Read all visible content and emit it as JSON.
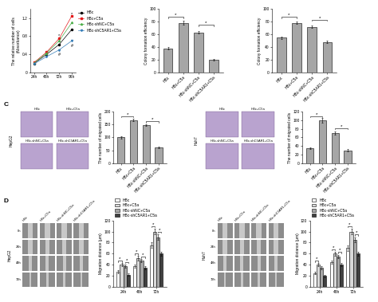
{
  "chart_data": [
    {
      "type": "line",
      "y_label": "The relative number of cells (Absorbance)",
      "categories": [
        "24h",
        "48h",
        "72h",
        "96h"
      ],
      "ylim": [
        0,
        1.4
      ],
      "yticks": [
        0,
        0.4,
        0.8,
        1.2
      ],
      "legend": "upper left",
      "series": [
        {
          "name": "HBc",
          "color": "#000000",
          "marker": "circle",
          "values": [
            0.2,
            0.4,
            0.62,
            0.95
          ]
        },
        {
          "name": "HBc+C5a",
          "color": "#e41a1c",
          "marker": "square",
          "values": [
            0.22,
            0.45,
            0.75,
            1.25
          ]
        },
        {
          "name": "HBc-shNC+C5a",
          "color": "#4daf4a",
          "marker": "triangle_up",
          "values": [
            0.21,
            0.43,
            0.7,
            1.1
          ]
        },
        {
          "name": "HBc-shC5AR1+C5a",
          "color": "#377eb8",
          "marker": "triangle_down",
          "values": [
            0.19,
            0.35,
            0.5,
            0.7
          ]
        }
      ],
      "annotations": [
        {
          "text": "*",
          "category": 3,
          "y": 1.3
        },
        {
          "text": "#",
          "category": 3,
          "y": 0.58
        },
        {
          "text": "*",
          "category": 2,
          "y": 0.82
        },
        {
          "text": "#",
          "category": 2,
          "y": 0.4
        }
      ]
    },
    {
      "type": "bar",
      "y_label": "Colony formation efficiency",
      "categories": [
        "HBc",
        "HBc+C5a",
        "HBc-shNC+C5a",
        "HBc-shC5AR1+C5a"
      ],
      "values": [
        38,
        78,
        63,
        20
      ],
      "errors": [
        2,
        3,
        2,
        1
      ],
      "color": "#a6a6a6",
      "ylim": [
        0,
        100
      ],
      "yticks": [
        0,
        20,
        40,
        60,
        80,
        100
      ],
      "annotations": [
        {
          "text": "*",
          "from": 0,
          "to": 1,
          "y": 88
        },
        {
          "text": "*",
          "from": 2,
          "to": 3,
          "y": 75
        }
      ]
    },
    {
      "type": "bar",
      "y_label": "Colony formation efficiency",
      "categories": [
        "HBc",
        "HBc+C5a",
        "HBc-shNC+C5a",
        "HBc-shC5AR1+C5a"
      ],
      "values": [
        55,
        78,
        72,
        48
      ],
      "errors": [
        2,
        2,
        2,
        2
      ],
      "color": "#a6a6a6",
      "ylim": [
        0,
        100
      ],
      "yticks": [
        0,
        20,
        40,
        60,
        80,
        100
      ],
      "annotations": [
        {
          "text": "*",
          "from": 0,
          "to": 1,
          "y": 88
        },
        {
          "text": "*",
          "from": 2,
          "to": 3,
          "y": 83
        }
      ]
    },
    {
      "type": "bar",
      "y_label": "The number of migrated cells",
      "categories": [
        "HBc",
        "HBc+C5a",
        "HBc-shNC+C5a",
        "HBc-shC5AR1+C5a"
      ],
      "values": [
        100,
        168,
        148,
        62
      ],
      "errors": [
        6,
        5,
        4,
        3
      ],
      "color": "#a6a6a6",
      "ylim": [
        0,
        200
      ],
      "yticks": [
        0,
        50,
        100,
        150,
        200
      ],
      "annotations": [
        {
          "text": "*",
          "from": 0,
          "to": 1,
          "y": 182
        },
        {
          "text": "*",
          "from": 2,
          "to": 3,
          "y": 162
        }
      ]
    },
    {
      "type": "bar",
      "y_label": "The number of migrated cells",
      "categories": [
        "HBc",
        "HBc+C5a",
        "HBc-shNC+C5a",
        "HBc-shC5AR1+C5a"
      ],
      "values": [
        35,
        100,
        70,
        30
      ],
      "errors": [
        2,
        5,
        4,
        2
      ],
      "color": "#a6a6a6",
      "ylim": [
        0,
        120
      ],
      "yticks": [
        0,
        20,
        40,
        60,
        80,
        100,
        120
      ],
      "annotations": [
        {
          "text": "*",
          "from": 0,
          "to": 1,
          "y": 110
        },
        {
          "text": "*",
          "from": 2,
          "to": 3,
          "y": 82
        }
      ]
    },
    {
      "type": "bar",
      "y_label": "Migration distance (μm)",
      "categories": [
        "24h",
        "48h",
        "72h"
      ],
      "ylim": [
        0,
        120
      ],
      "yticks": [
        0,
        20,
        40,
        60,
        80,
        100,
        120
      ],
      "legend": "upper left",
      "series": [
        {
          "name": "HBc",
          "color": "#ffffff",
          "values": [
            28,
            38,
            75
          ],
          "errors": [
            3,
            3,
            5
          ]
        },
        {
          "name": "HBc+C5a",
          "color": "#d9d9d9",
          "values": [
            40,
            52,
            100
          ],
          "errors": [
            3,
            4,
            5
          ]
        },
        {
          "name": "HBc-shNC+C5a",
          "color": "#a6a6a6",
          "values": [
            38,
            48,
            90
          ],
          "errors": [
            3,
            3,
            5
          ]
        },
        {
          "name": "HBc-shC5AR1+C5a",
          "color": "#404040",
          "values": [
            22,
            35,
            60
          ],
          "errors": [
            2,
            3,
            4
          ]
        }
      ],
      "annotations": [
        {
          "text": "*",
          "category": 0,
          "from": 0,
          "to": 1,
          "y": 47
        },
        {
          "text": "*",
          "category": 0,
          "from": 2,
          "to": 3,
          "y": 45
        },
        {
          "text": "*",
          "category": 1,
          "from": 0,
          "to": 1,
          "y": 60
        },
        {
          "text": "*",
          "category": 1,
          "from": 2,
          "to": 3,
          "y": 55
        },
        {
          "text": "*",
          "category": 2,
          "from": 0,
          "to": 1,
          "y": 110
        },
        {
          "text": "*",
          "category": 2,
          "from": 2,
          "to": 3,
          "y": 100
        }
      ]
    },
    {
      "type": "bar",
      "y_label": "Migration distance (μm)",
      "categories": [
        "24h",
        "48h",
        "72h"
      ],
      "ylim": [
        0,
        120
      ],
      "yticks": [
        0,
        20,
        40,
        60,
        80,
        100,
        120
      ],
      "legend": "upper left",
      "series": [
        {
          "name": "HBc",
          "color": "#ffffff",
          "values": [
            25,
            45,
            70
          ],
          "errors": [
            2,
            3,
            5
          ]
        },
        {
          "name": "HBc+C5a",
          "color": "#d9d9d9",
          "values": [
            40,
            60,
            100
          ],
          "errors": [
            3,
            4,
            5
          ]
        },
        {
          "name": "HBc-shNC+C5a",
          "color": "#a6a6a6",
          "values": [
            35,
            55,
            85
          ],
          "errors": [
            3,
            3,
            5
          ]
        },
        {
          "name": "HBc-shC5AR1+C5a",
          "color": "#404040",
          "values": [
            20,
            40,
            60
          ],
          "errors": [
            2,
            3,
            4
          ]
        }
      ],
      "annotations": [
        {
          "text": "*",
          "category": 0,
          "from": 0,
          "to": 1,
          "y": 47
        },
        {
          "text": "*",
          "category": 1,
          "from": 0,
          "to": 1,
          "y": 68
        },
        {
          "text": "*",
          "category": 1,
          "from": 2,
          "to": 3,
          "y": 63
        },
        {
          "text": "*",
          "category": 2,
          "from": 0,
          "to": 1,
          "y": 110
        },
        {
          "text": "*",
          "category": 2,
          "from": 2,
          "to": 3,
          "y": 95
        }
      ]
    }
  ],
  "panels": [
    {
      "label": "C",
      "cell_lines": [
        "HepG2",
        "Huh7"
      ],
      "image_labels": [
        "HBc",
        "HBc+C5a",
        "HBc-shNC+C5a",
        "HBc-shC5AR1+C5a"
      ]
    },
    {
      "label": "D",
      "cell_lines": [
        "HepG2",
        "Huh7"
      ],
      "image_labels": [
        "HBc",
        "HBc+C5a",
        "HBc-shNC+C5a",
        "HBc-shC5AR1+C5a"
      ],
      "time_labels": [
        "0h",
        "24h",
        "48h",
        "72h"
      ]
    }
  ]
}
